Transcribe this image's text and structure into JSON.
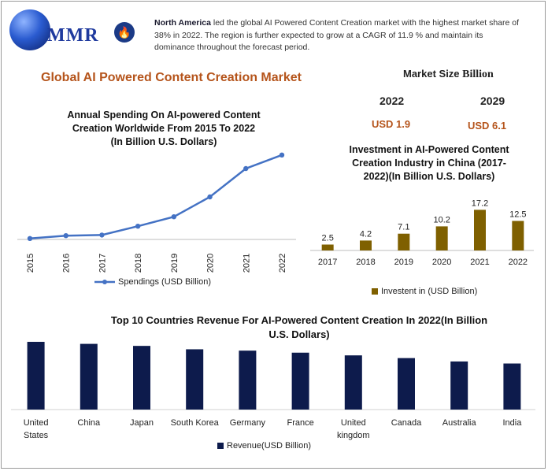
{
  "brand": {
    "logo_text": "MMR"
  },
  "summary": {
    "lead": "North America",
    "text": " led the global AI Powered Content Creation market with the highest market share of 38% in 2022. The region is further expected to grow at a CAGR of 11.9 % and maintain its dominance throughout the forecast period."
  },
  "headline": "Global AI Powered Content Creation Market",
  "market_size": {
    "label": "Market Size ",
    "unit": "Billion",
    "years": [
      "2022",
      "2029"
    ],
    "values": [
      "USD 1.9",
      "USD 6.1"
    ]
  },
  "colors": {
    "line": "#4472c4",
    "gold_bar": "#7f6000",
    "navy_bar": "#0d1b4c",
    "accent_text": "#b5541b"
  },
  "chart_data": [
    {
      "type": "line",
      "title": "Annual Spending On AI-powered Content Creation Worldwide From 2015 To 2022 (In Billion U.S. Dollars)",
      "title_lines": [
        "Annual Spending On AI-powered Content",
        "Creation Worldwide From 2015 To 2022",
        "(In Billion U.S. Dollars)"
      ],
      "categories": [
        "2015",
        "2016",
        "2017",
        "2018",
        "2019",
        "2020",
        "2021",
        "2022"
      ],
      "series": [
        {
          "name": "Spendings (USD Billion)",
          "values": [
            0.3,
            1.2,
            1.4,
            4.2,
            7.2,
            13.5,
            22.5,
            26.8
          ]
        }
      ],
      "ylim": [
        0,
        30
      ],
      "grid": false,
      "legend": "bottom"
    },
    {
      "type": "bar",
      "title": "Investment in AI-Powered Content Creation Industry in China (2017-2022)(In Billion U.S. Dollars)",
      "title_lines": [
        "Investment in AI-Powered Content",
        "Creation Industry in China (2017-",
        "2022)(In Billion U.S. Dollars)"
      ],
      "categories": [
        "2017",
        "2018",
        "2019",
        "2020",
        "2021",
        "2022"
      ],
      "series": [
        {
          "name": "Investent in (USD Billion)",
          "values": [
            2.5,
            4.2,
            7.1,
            10.2,
            17.2,
            12.5
          ]
        }
      ],
      "data_labels": [
        "2.5",
        "4.2",
        "7.1",
        "10.2",
        "17.2",
        "12.5"
      ],
      "ylim": [
        0,
        20
      ],
      "grid": false,
      "legend": "bottom"
    },
    {
      "type": "bar",
      "title": "Top 10 Countries Revenue For AI-Powered Content Creation In 2022(In Billion U.S. Dollars)",
      "title_lines": [
        "Top 10  Countries Revenue For AI-Powered Content Creation In 2022(In Billion",
        "U.S. Dollars)"
      ],
      "categories": [
        "United States",
        "China",
        "Japan",
        "South Korea",
        "Germany",
        "France",
        "United kingdom",
        "Canada",
        "Australia",
        "India"
      ],
      "category_lines": [
        [
          "United",
          "States"
        ],
        [
          "China"
        ],
        [
          "Japan"
        ],
        [
          "South Korea"
        ],
        [
          "Germany"
        ],
        [
          "France"
        ],
        [
          "United",
          "kingdom"
        ],
        [
          "Canada"
        ],
        [
          "Australia"
        ],
        [
          "India"
        ]
      ],
      "series": [
        {
          "name": "Revenue(USD Billion)",
          "values": [
            100,
            97,
            94,
            89,
            87,
            84,
            80,
            76,
            71,
            68
          ]
        }
      ],
      "ylim": [
        0,
        100
      ],
      "grid": false,
      "legend": "bottom"
    }
  ]
}
